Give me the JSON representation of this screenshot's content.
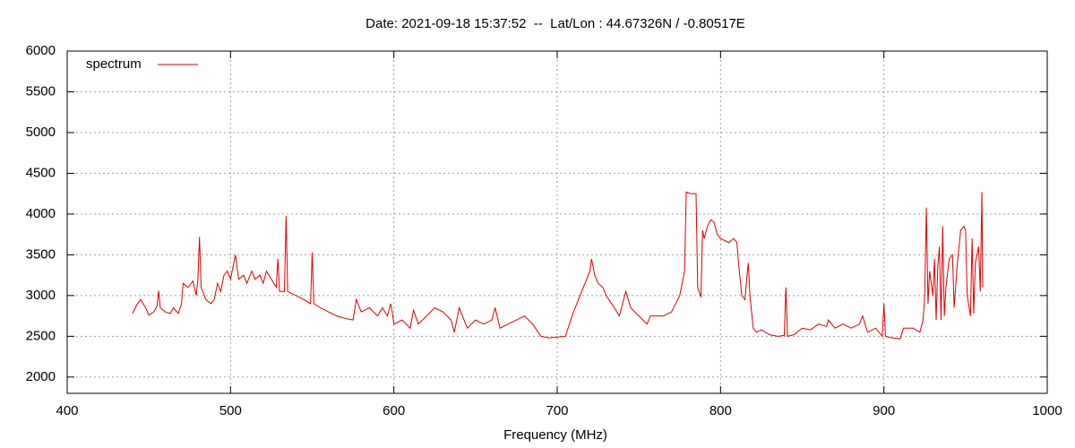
{
  "chart_data": {
    "type": "line",
    "title": "Date: 2021-09-18 15:37:52  --  Lat/Lon : 44.67326N / -0.80517E",
    "x_label": "Frequency (MHz)",
    "xlim": [
      400,
      1000
    ],
    "xticks": [
      400,
      500,
      600,
      700,
      800,
      900,
      1000
    ],
    "ylim": [
      1800,
      6000
    ],
    "yticks": [
      2000,
      2500,
      3000,
      3500,
      4000,
      4500,
      5000,
      5500,
      6000
    ],
    "grid": true,
    "legend_position": "upper-left",
    "series": [
      {
        "name": "spectrum",
        "color": "#e00000",
        "x": [
          440,
          443,
          445,
          448,
          450,
          453,
          455,
          456,
          457,
          460,
          463,
          465,
          468,
          470,
          471,
          474,
          477,
          479,
          480,
          481,
          482,
          485,
          488,
          490,
          492,
          494,
          496,
          498,
          500,
          502,
          503,
          505,
          508,
          510,
          513,
          515,
          518,
          520,
          522,
          525,
          528,
          529,
          530,
          533,
          534,
          535,
          540,
          545,
          549,
          550,
          551,
          555,
          560,
          565,
          570,
          575,
          577,
          580,
          585,
          590,
          593,
          596,
          598,
          599,
          600,
          605,
          610,
          612,
          615,
          620,
          625,
          630,
          635,
          637,
          640,
          643,
          645,
          650,
          655,
          660,
          662,
          665,
          670,
          675,
          680,
          685,
          690,
          695,
          700,
          705,
          710,
          715,
          718,
          720,
          721,
          723,
          725,
          728,
          730,
          735,
          738,
          740,
          742,
          745,
          750,
          755,
          757,
          760,
          765,
          770,
          775,
          778,
          779,
          782,
          785,
          786,
          788,
          789,
          790,
          792,
          794,
          796,
          798,
          800,
          805,
          808,
          810,
          811,
          813,
          815,
          816,
          817,
          818,
          820,
          822,
          825,
          830,
          835,
          839,
          840,
          841,
          845,
          850,
          855,
          860,
          865,
          866,
          870,
          875,
          880,
          885,
          887,
          890,
          895,
          899,
          900,
          901,
          905,
          910,
          912,
          918,
          922,
          924,
          925,
          926,
          927,
          928,
          930,
          931,
          932,
          933,
          934,
          935,
          936,
          937,
          938,
          940,
          942,
          943,
          945,
          947,
          949,
          950,
          951,
          953,
          954,
          955,
          956,
          958,
          959,
          960,
          960.5
        ],
        "values": [
          2780,
          2900,
          2950,
          2850,
          2760,
          2800,
          2870,
          3060,
          2850,
          2800,
          2780,
          2850,
          2780,
          2900,
          3150,
          3100,
          3180,
          3000,
          3200,
          3720,
          3100,
          2950,
          2900,
          2950,
          3150,
          3050,
          3250,
          3300,
          3200,
          3400,
          3500,
          3200,
          3250,
          3150,
          3300,
          3200,
          3250,
          3150,
          3300,
          3200,
          3100,
          3450,
          3050,
          3050,
          3980,
          3050,
          3000,
          2950,
          2900,
          3530,
          2900,
          2850,
          2800,
          2750,
          2720,
          2700,
          2950,
          2800,
          2850,
          2750,
          2850,
          2750,
          2900,
          2800,
          2650,
          2700,
          2600,
          2820,
          2650,
          2750,
          2850,
          2800,
          2700,
          2550,
          2850,
          2700,
          2600,
          2700,
          2650,
          2700,
          2850,
          2600,
          2650,
          2700,
          2750,
          2650,
          2500,
          2480,
          2490,
          2500,
          2800,
          3050,
          3200,
          3300,
          3450,
          3250,
          3150,
          3100,
          3000,
          2850,
          2750,
          2900,
          3050,
          2850,
          2750,
          2650,
          2750,
          2750,
          2750,
          2800,
          3000,
          3300,
          4270,
          4250,
          4250,
          3100,
          2980,
          3800,
          3700,
          3850,
          3930,
          3900,
          3750,
          3700,
          3650,
          3700,
          3650,
          3400,
          3000,
          2950,
          3200,
          3400,
          3000,
          2600,
          2550,
          2580,
          2520,
          2500,
          2510,
          3100,
          2500,
          2520,
          2600,
          2580,
          2650,
          2620,
          2700,
          2600,
          2650,
          2600,
          2650,
          2750,
          2550,
          2600,
          2500,
          2900,
          2500,
          2480,
          2470,
          2600,
          2600,
          2550,
          2700,
          3000,
          4080,
          2900,
          3300,
          3000,
          3450,
          2700,
          3350,
          3600,
          2700,
          3850,
          2750,
          3100,
          3450,
          3500,
          2850,
          3400,
          3800,
          3850,
          3800,
          3000,
          2750,
          3700,
          2780,
          3400,
          3600,
          3050,
          4270,
          3100
        ]
      }
    ]
  }
}
